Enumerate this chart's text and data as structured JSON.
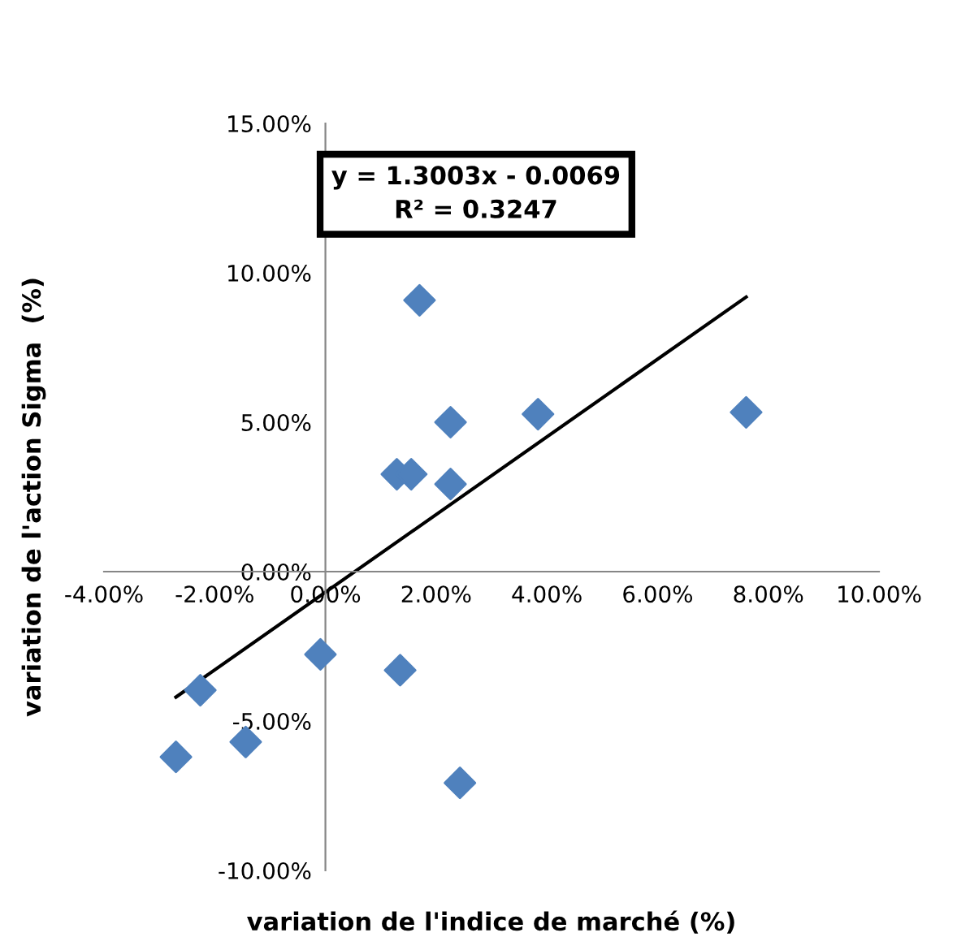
{
  "chart_data": {
    "type": "scatter",
    "xlabel": "variation de l'indice de marché (%)",
    "ylabel": "variation de l'action Sigma  (%)",
    "annotations": [
      "y = 1.3003x - 0.0069\nR² = 0.3247"
    ],
    "xlim": [
      -4,
      10
    ],
    "ylim": [
      -10,
      15
    ],
    "xticks": [
      {
        "value": -4,
        "label": "-4.00%"
      },
      {
        "value": -2,
        "label": "-2.00%"
      },
      {
        "value": 0,
        "label": "0.00%"
      },
      {
        "value": 2,
        "label": "2.00%"
      },
      {
        "value": 4,
        "label": "4.00%"
      },
      {
        "value": 6,
        "label": "6.00%"
      },
      {
        "value": 8,
        "label": "8.00%"
      },
      {
        "value": 10,
        "label": "10.00%"
      }
    ],
    "yticks": [
      {
        "value": -10,
        "label": "-10.00%"
      },
      {
        "value": -5,
        "label": "-5.00%"
      },
      {
        "value": 0,
        "label": "0.00%"
      },
      {
        "value": 5,
        "label": "5.00%"
      },
      {
        "value": 10,
        "label": "10.00%"
      },
      {
        "value": 15,
        "label": "15.00%"
      }
    ],
    "grid": false,
    "legend": false,
    "series": [
      {
        "color": "#4f81bd",
        "marker": "diamond",
        "x": [
          -2.7,
          -2.26,
          -1.44,
          -0.09,
          1.35,
          2.43,
          1.7,
          1.29,
          1.55,
          2.26,
          2.26,
          3.84,
          7.6
        ],
        "values": [
          -6.2,
          -3.97,
          -5.7,
          -2.77,
          -3.3,
          -7.07,
          9.08,
          3.26,
          3.26,
          5.0,
          2.93,
          5.27,
          5.33
        ]
      },
      {
        "type": "line",
        "color": "#000000",
        "marker": "none",
        "line_style": "solid",
        "x": [
          -2.7,
          7.6
        ],
        "values": [
          -4.2,
          9.19
        ]
      }
    ]
  }
}
